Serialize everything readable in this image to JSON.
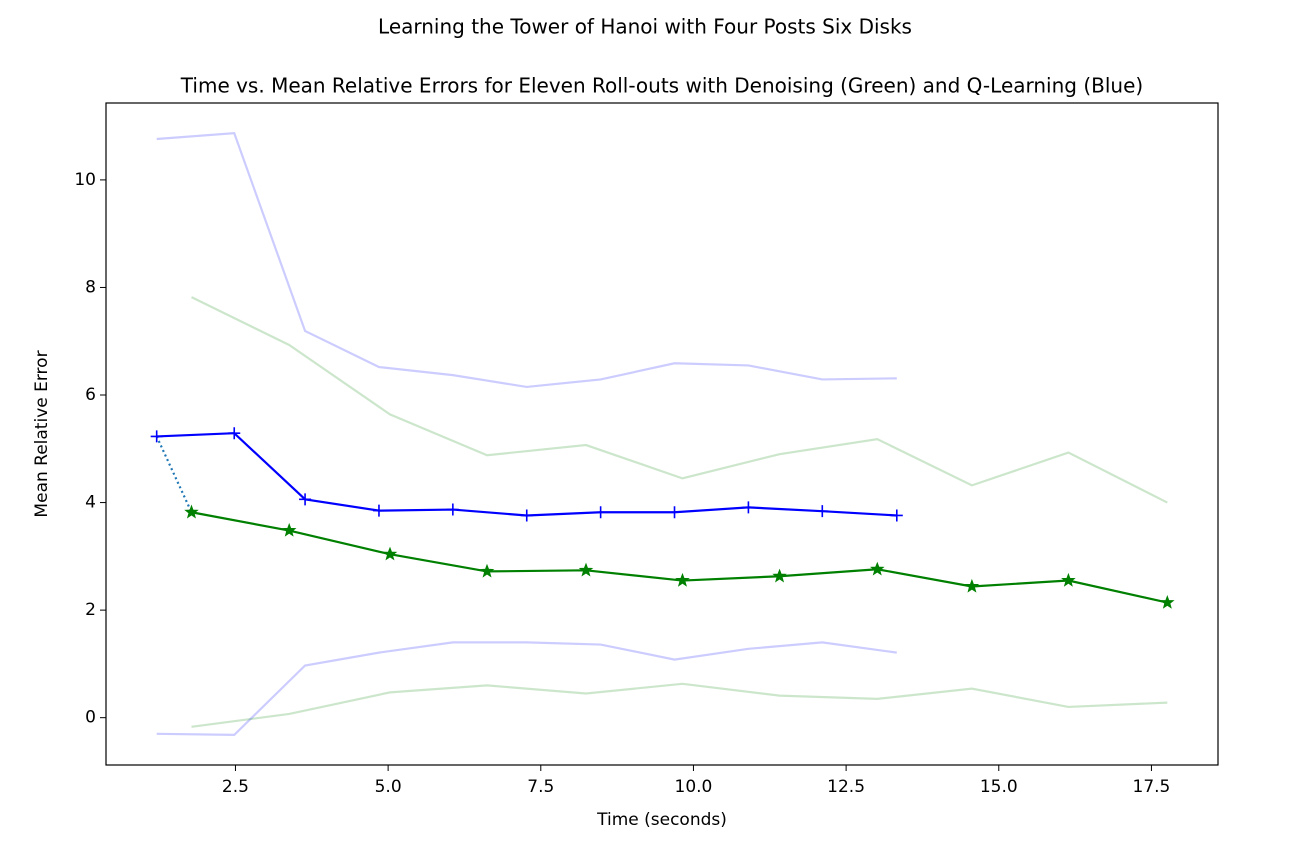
{
  "chart_data": {
    "type": "line",
    "suptitle": "Learning the Tower of Hanoi with Four Posts Six Disks",
    "title": "Time vs. Mean Relative Errors for Eleven Roll-outs with Denoising (Green) and Q-Learning (Blue)",
    "xlabel": "Time (seconds)",
    "ylabel": "Mean Relative Error",
    "xlim": [
      0.38,
      18.59
    ],
    "ylim": [
      -0.88,
      11.43
    ],
    "xticks": [
      2.5,
      {
        "value": 5,
        "label": "5.0"
      },
      7.5,
      {
        "value": 10,
        "label": "10.0"
      },
      12.5,
      {
        "value": 15,
        "label": "15.0"
      },
      17.5
    ],
    "yticks": [
      0,
      2,
      4,
      6,
      8,
      10
    ],
    "connector": {
      "color": "#1f77b4",
      "dash": "dotted"
    },
    "series": [
      {
        "color": "#0000ff",
        "marker": "+",
        "opacity": 1,
        "x": [
          1.21,
          2.48,
          3.64,
          4.85,
          6.06,
          7.27,
          8.48,
          9.69,
          10.9,
          12.11,
          13.33
        ],
        "values": [
          5.23,
          5.29,
          4.06,
          3.85,
          3.87,
          3.76,
          3.82,
          3.82,
          3.91,
          3.84,
          3.76
        ]
      },
      {
        "color": "#0000ff",
        "opacity": 0.2,
        "x": [
          1.21,
          2.48,
          3.64,
          4.85,
          6.06,
          7.27,
          8.48,
          9.69,
          10.9,
          12.11,
          13.33
        ],
        "values": [
          10.76,
          10.87,
          7.19,
          6.52,
          6.37,
          6.15,
          6.29,
          6.59,
          6.55,
          6.29,
          6.31
        ]
      },
      {
        "color": "#0000ff",
        "opacity": 0.2,
        "x": [
          1.21,
          2.48,
          3.64,
          4.85,
          6.06,
          7.27,
          8.48,
          9.69,
          10.9,
          12.11,
          13.33
        ],
        "values": [
          -0.3,
          -0.32,
          0.97,
          1.21,
          1.4,
          1.4,
          1.36,
          1.08,
          1.28,
          1.4,
          1.21
        ]
      },
      {
        "color": "#008000",
        "marker": "*",
        "opacity": 1,
        "x": [
          1.78,
          3.38,
          5.03,
          6.62,
          8.24,
          9.82,
          11.41,
          13.01,
          14.56,
          16.14,
          17.76
        ],
        "values": [
          3.82,
          3.48,
          3.04,
          2.72,
          2.74,
          2.55,
          2.63,
          2.76,
          2.44,
          2.55,
          2.14
        ]
      },
      {
        "color": "#008000",
        "opacity": 0.2,
        "x": [
          1.78,
          3.38,
          5.03,
          6.62,
          8.24,
          9.82,
          11.41,
          13.01,
          14.56,
          16.14,
          17.76
        ],
        "values": [
          7.82,
          6.93,
          5.64,
          4.88,
          5.07,
          4.45,
          4.9,
          5.18,
          4.32,
          4.93,
          4.0
        ]
      },
      {
        "color": "#008000",
        "opacity": 0.2,
        "x": [
          1.78,
          3.38,
          5.03,
          6.62,
          8.24,
          9.82,
          11.41,
          13.01,
          14.56,
          16.14,
          17.76
        ],
        "values": [
          -0.17,
          0.07,
          0.47,
          0.6,
          0.45,
          0.63,
          0.41,
          0.35,
          0.54,
          0.2,
          0.28
        ]
      }
    ]
  }
}
